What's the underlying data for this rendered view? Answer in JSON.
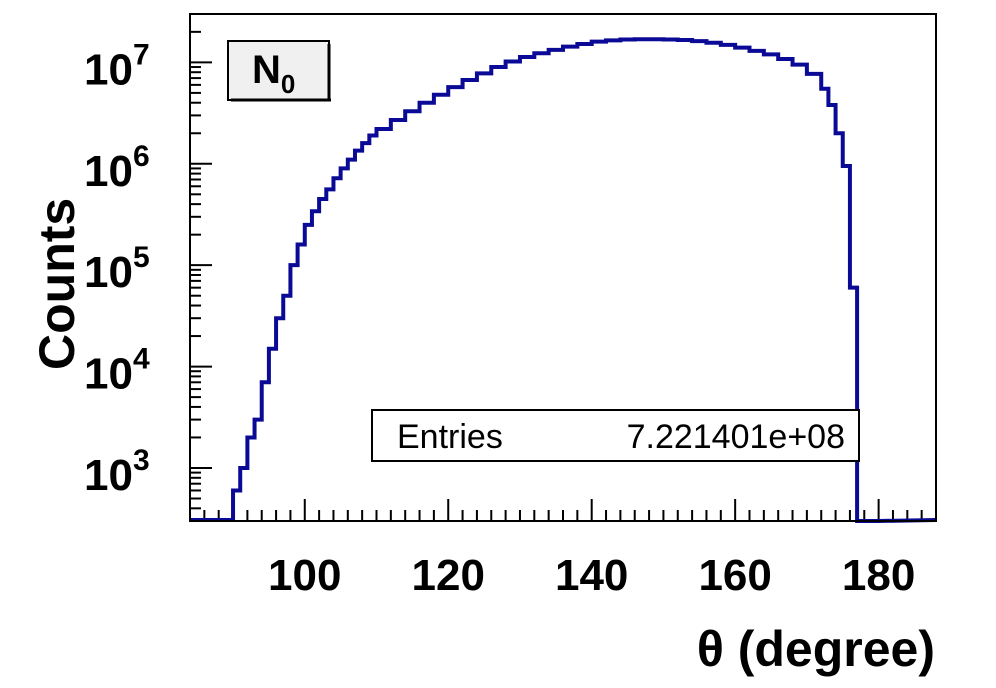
{
  "chart_data": {
    "type": "histogram",
    "title": "N",
    "title_subscript": "0",
    "xlabel": "θ (degree)",
    "ylabel": "Counts",
    "xlim": [
      84,
      188
    ],
    "ylim": [
      300,
      30000000
    ],
    "yscale": "log",
    "x_ticks": [
      {
        "value": 100,
        "label": "100"
      },
      {
        "value": 120,
        "label": "120"
      },
      {
        "value": 140,
        "label": "140"
      },
      {
        "value": 160,
        "label": "160"
      },
      {
        "value": 180,
        "label": "180"
      }
    ],
    "y_ticks": [
      {
        "value": 1000,
        "base": "10",
        "exp": "3"
      },
      {
        "value": 10000,
        "base": "10",
        "exp": "4"
      },
      {
        "value": 100000,
        "base": "10",
        "exp": "5"
      },
      {
        "value": 1000000,
        "base": "10",
        "exp": "6"
      },
      {
        "value": 10000000,
        "base": "10",
        "exp": "7"
      }
    ],
    "stats": {
      "label": "Entries",
      "value": "7.221401e+08"
    },
    "line_color": "#0a0a96",
    "bin_width": 1,
    "series": [
      {
        "x": [
          90,
          91,
          92,
          93,
          94,
          95,
          96,
          97,
          98,
          99,
          100,
          101,
          102,
          103,
          104,
          105,
          106,
          107,
          108,
          109,
          110,
          112,
          114,
          116,
          118,
          120,
          122,
          124,
          126,
          128,
          130,
          132,
          134,
          136,
          138,
          140,
          142,
          144,
          146,
          148,
          150,
          152,
          154,
          156,
          158,
          160,
          162,
          164,
          166,
          168,
          170,
          172,
          173,
          174,
          175,
          176,
          177,
          178,
          179
        ],
        "y": [
          600,
          1000,
          2000,
          3000,
          7000,
          15000,
          30000,
          50000,
          100000,
          160000,
          250000,
          340000,
          450000,
          560000,
          720000,
          900000,
          1100000,
          1350000,
          1600000,
          1900000,
          2200000,
          2700000,
          3300000,
          4000000,
          4800000,
          5700000,
          6700000,
          7800000,
          9000000,
          10200000,
          11300000,
          12300000,
          13300000,
          14300000,
          15200000,
          16000000,
          16500000,
          16800000,
          16900000,
          16900000,
          16800000,
          16600000,
          16200000,
          15600000,
          14900000,
          14000000,
          13000000,
          12000000,
          10800000,
          9500000,
          7700000,
          5500000,
          3800000,
          2000000,
          950000,
          60000,
          300,
          300,
          300
        ]
      }
    ]
  }
}
